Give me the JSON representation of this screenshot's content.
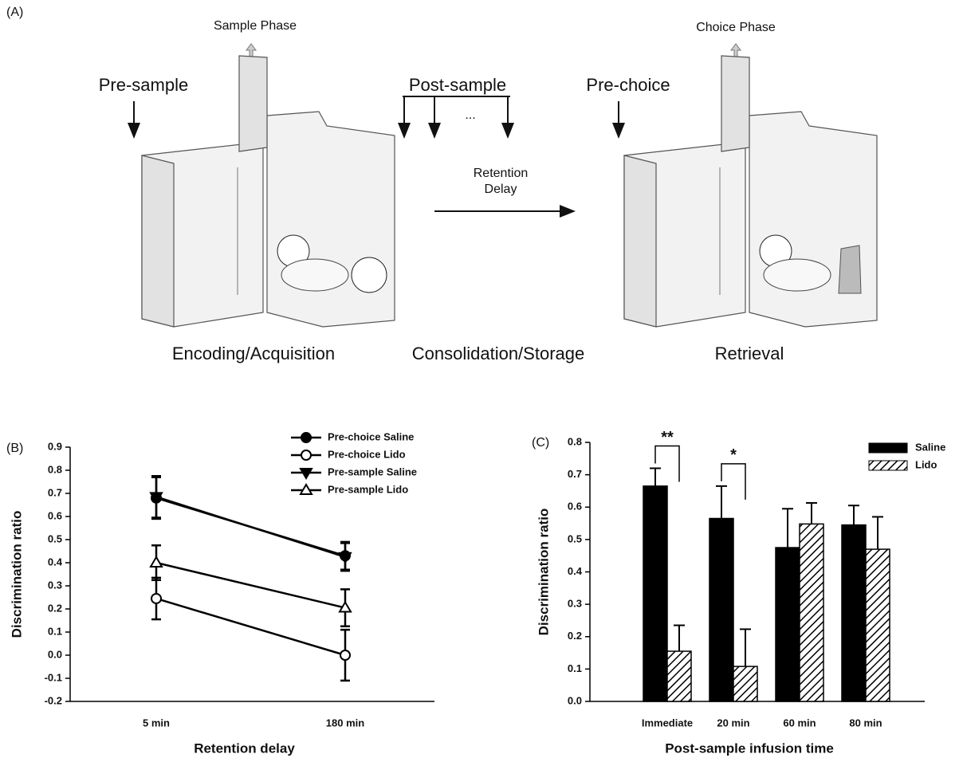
{
  "panel_a": {
    "label": "(A)",
    "sample_phase": "Sample Phase",
    "choice_phase": "Choice Phase",
    "pre_sample": "Pre-sample",
    "post_sample": "Post-sample",
    "ellipsis": "...",
    "retention_delay": [
      "Retention",
      "Delay"
    ],
    "pre_choice": "Pre-choice",
    "stages": [
      "Encoding/Acquisition",
      "Consolidation/Storage",
      "Retrieval"
    ]
  },
  "chart_data": [
    {
      "type": "line",
      "panel_label": "(B)",
      "x_label": "Retention delay",
      "y_label": "Discrimination ratio",
      "categories": [
        "5 min",
        "180 min"
      ],
      "ylim": [
        -0.2,
        0.9
      ],
      "yticks": [
        -0.2,
        -0.1,
        {
          "value": 0,
          "label": "0.0"
        },
        0.1,
        0.2,
        0.3,
        0.4,
        0.5,
        0.6,
        0.7,
        0.8,
        0.9
      ],
      "legend": "upper right",
      "series": [
        {
          "name": "Pre-choice Saline",
          "color": "#000000",
          "marker": "circle",
          "filled": true,
          "values": [
            0.68,
            0.43
          ],
          "errors": [
            0.09,
            0.06
          ]
        },
        {
          "name": "Pre-choice Lido",
          "color": "#000000",
          "marker": "circle",
          "filled": false,
          "values": [
            0.245,
            0.0
          ],
          "errors": [
            0.09,
            0.11
          ]
        },
        {
          "name": "Pre-sample Saline",
          "color": "#000000",
          "marker": "triangle-down",
          "filled": true,
          "values": [
            0.685,
            0.425
          ],
          "errors": [
            0.09,
            0.06
          ]
        },
        {
          "name": "Pre-sample Lido",
          "color": "#000000",
          "marker": "triangle-up",
          "filled": false,
          "values": [
            0.4,
            0.205
          ],
          "errors": [
            0.075,
            0.08
          ]
        }
      ]
    },
    {
      "type": "bar",
      "panel_label": "(C)",
      "x_label": "Post-sample infusion time",
      "y_label": "Discrimination ratio",
      "categories": [
        "Immediate",
        "20 min",
        "60 min",
        "80 min"
      ],
      "ylim": [
        0,
        0.8
      ],
      "yticks": [
        {
          "value": 0,
          "label": "0.0"
        },
        0.1,
        0.2,
        0.3,
        0.4,
        0.5,
        0.6,
        0.7,
        0.8
      ],
      "legend": "upper right",
      "series": [
        {
          "name": "Saline",
          "color": "#000000",
          "fill": "solid",
          "values": [
            0.665,
            0.565,
            0.475,
            0.545
          ],
          "errors": [
            0.055,
            0.1,
            0.12,
            0.06
          ]
        },
        {
          "name": "Lido",
          "color": "#000000",
          "fill": "hatch",
          "values": [
            0.155,
            0.108,
            0.548,
            0.47
          ],
          "errors": [
            0.08,
            0.115,
            0.065,
            0.1
          ]
        }
      ],
      "annotations": [
        "**",
        "*"
      ]
    }
  ]
}
